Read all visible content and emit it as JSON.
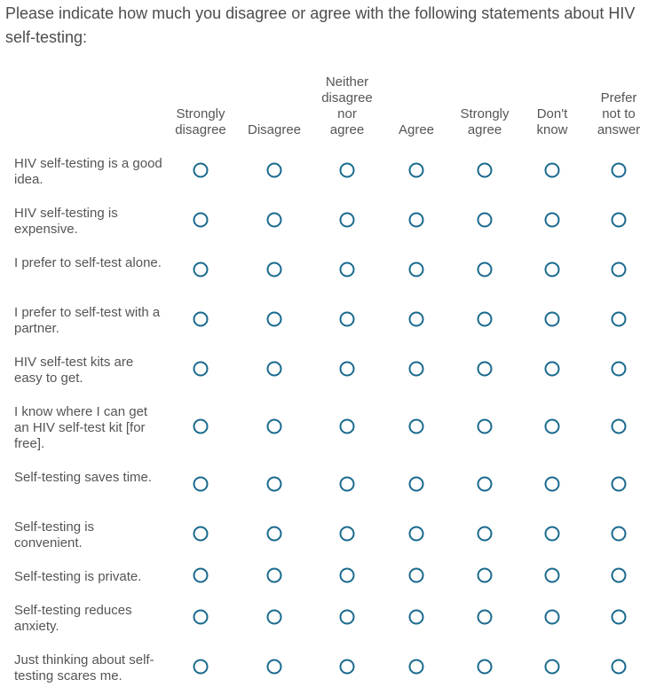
{
  "question": {
    "text": "Please indicate how much you disagree or agree with the following statements about HIV self-testing:"
  },
  "columns": [
    {
      "key": "strongly_disagree",
      "lines": [
        "Strongly",
        "disagree"
      ]
    },
    {
      "key": "disagree",
      "lines": [
        "Disagree"
      ]
    },
    {
      "key": "neither",
      "lines": [
        "Neither",
        "disagree",
        "nor",
        "agree"
      ]
    },
    {
      "key": "agree",
      "lines": [
        "Agree"
      ]
    },
    {
      "key": "strongly_agree",
      "lines": [
        "Strongly",
        "agree"
      ]
    },
    {
      "key": "dont_know",
      "lines": [
        "Don't",
        "know"
      ]
    },
    {
      "key": "prefer_not",
      "lines": [
        "Prefer",
        "not to",
        "answer"
      ]
    }
  ],
  "rows": [
    {
      "label": "HIV self-testing is a good idea."
    },
    {
      "label": "HIV self-testing is expensive."
    },
    {
      "label": "I prefer to self-test alone."
    },
    {
      "label": "I prefer to self-test with a partner."
    },
    {
      "label": "HIV self-test kits are easy to get."
    },
    {
      "label": "I know where I can get an HIV self-test kit [for free]."
    },
    {
      "label": "Self-testing saves time."
    },
    {
      "label": "Self-testing is convenient."
    },
    {
      "label": "Self-testing is private."
    },
    {
      "label": "Self-testing reduces anxiety."
    },
    {
      "label": "Just thinking about self-testing scares me."
    }
  ],
  "selected": []
}
